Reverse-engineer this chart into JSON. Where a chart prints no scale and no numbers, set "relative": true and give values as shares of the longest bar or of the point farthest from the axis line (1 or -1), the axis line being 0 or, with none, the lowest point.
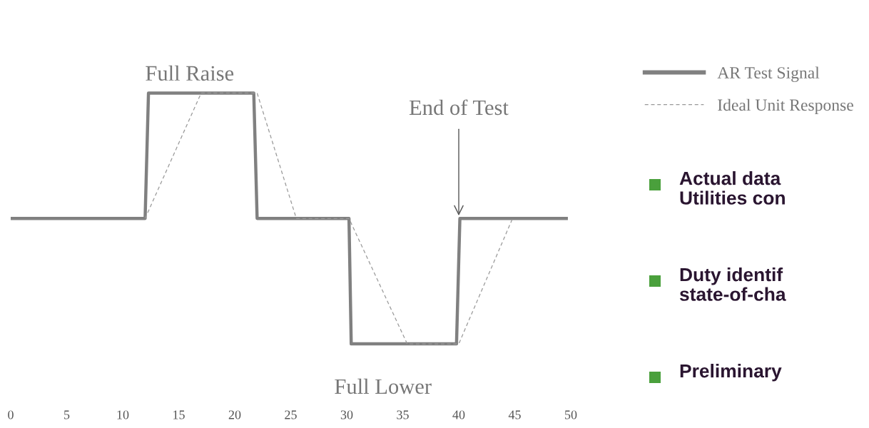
{
  "chart_data": {
    "type": "line",
    "relative": true,
    "tick_labels": "x",
    "legend": "top right",
    "grid": false,
    "xlim": [
      0,
      50
    ],
    "xticks": [
      0,
      5,
      10,
      15,
      20,
      25,
      30,
      35,
      40,
      45,
      50
    ],
    "series": [
      {
        "name": "AR Test Signal",
        "color": "#808080",
        "line_style": "solid",
        "x": [
          0,
          12,
          12.3,
          21.7,
          22,
          30.2,
          30.4,
          39.8,
          40.1,
          49.6
        ],
        "values": [
          0.5,
          0.5,
          1,
          1,
          0.5,
          0.5,
          0,
          0,
          0.5,
          0.5
        ]
      },
      {
        "name": "Ideal Unit Response",
        "color": "#999999",
        "line_style": "dashed",
        "x": [
          12,
          17,
          22,
          25.5,
          30.2,
          35.4,
          40,
          44.8
        ],
        "values": [
          0.5,
          1,
          1,
          0.5,
          0.5,
          0,
          0,
          0.5
        ]
      }
    ],
    "annotations": [
      {
        "text": "Full Raise",
        "x": 12,
        "y": 1
      },
      {
        "text": "End of Test",
        "x": 40,
        "y": 0.5
      },
      {
        "text": "Full Lower",
        "x": 35,
        "y": 0
      },
      "Actual data\nUtilities con",
      "Duty identif\nstate-of-cha",
      "Preliminary"
    ]
  }
}
